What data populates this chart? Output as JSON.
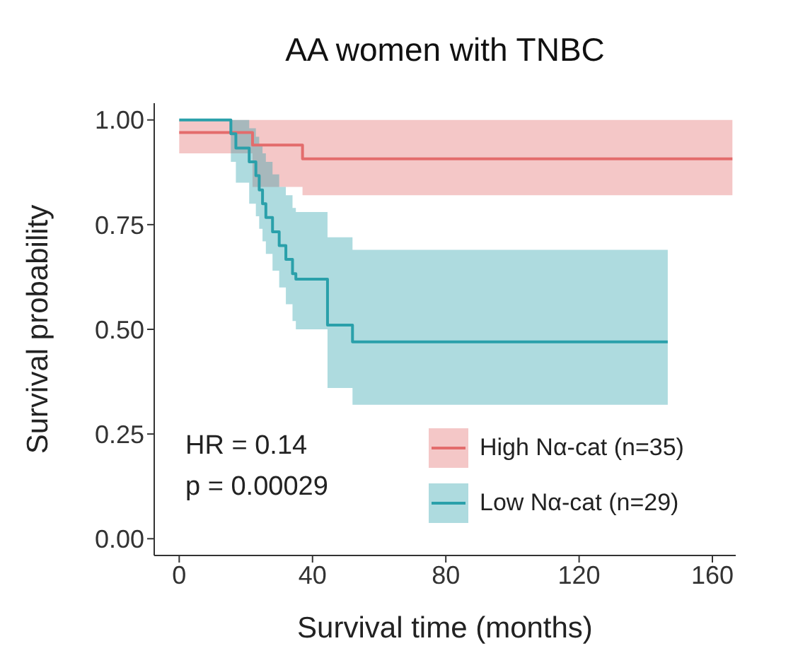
{
  "chart_data": {
    "type": "step",
    "title": "AA women with TNBC",
    "xlabel": "Survival time (months)",
    "ylabel": "Survival probability",
    "xlim": [
      -7.5,
      167
    ],
    "xticks": [
      0,
      40,
      80,
      120,
      160
    ],
    "ylim": [
      -0.04,
      1.04
    ],
    "yticks": [
      {
        "value": 0,
        "label": "0.00"
      },
      {
        "value": 0.25,
        "label": "0.25"
      },
      {
        "value": 0.5,
        "label": "0.50"
      },
      {
        "value": 0.75,
        "label": "0.75"
      },
      {
        "value": 1,
        "label": "1.00"
      }
    ],
    "grid": false,
    "legend": "bottom right",
    "marker": "none",
    "line_style": "solid",
    "annotations": [
      "HR = 0.14",
      "p = 0.00029"
    ],
    "series": [
      {
        "name": "High Nα-cat (n=35)",
        "color": "#e36c6c",
        "x": [
          0,
          15,
          22,
          37,
          166
        ],
        "values": [
          0.97,
          0.97,
          0.94,
          0.907,
          0.907
        ],
        "lower": [
          0.92,
          0.92,
          0.84,
          0.82,
          0.82
        ],
        "upper": [
          1,
          1,
          1,
          1,
          1
        ]
      },
      {
        "name": "Low Nα-cat (n=29)",
        "color": "#2aa0aa",
        "x": [
          0,
          15.5,
          17,
          21,
          23,
          24,
          25,
          26,
          28,
          30,
          32,
          34,
          35,
          44.5,
          52,
          146.6
        ],
        "values": [
          1,
          0.967,
          0.933,
          0.9,
          0.867,
          0.833,
          0.8,
          0.767,
          0.733,
          0.7,
          0.667,
          0.633,
          0.62,
          0.51,
          0.47,
          0.47
        ],
        "lower": [
          1,
          0.9,
          0.85,
          0.8,
          0.77,
          0.74,
          0.71,
          0.68,
          0.64,
          0.6,
          0.56,
          0.52,
          0.5,
          0.36,
          0.32,
          0.32
        ],
        "upper": [
          1,
          1,
          1,
          0.98,
          0.96,
          0.94,
          0.92,
          0.9,
          0.87,
          0.84,
          0.82,
          0.79,
          0.78,
          0.72,
          0.69,
          0.69
        ]
      }
    ]
  }
}
